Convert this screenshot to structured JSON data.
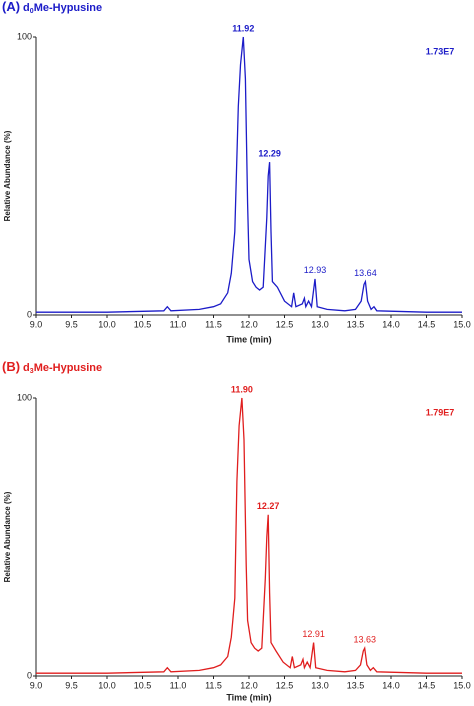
{
  "chart_data": [
    {
      "type": "line",
      "title": [
        "(A)",
        "d",
        "0",
        "Me-Hypusine"
      ],
      "annotation": "1.73E7",
      "xlabel": "Time (min)",
      "ylabel": "Relative Abundance (%)",
      "color": "#1c1cc8",
      "xlim": [
        9.0,
        15.0
      ],
      "ylim": [
        0,
        100
      ],
      "yticks": [
        0,
        100
      ],
      "xticks": [
        {
          "value": 9.0,
          "label": "9.0"
        },
        {
          "value": 9.5,
          "label": "9.5"
        },
        {
          "value": 10.0,
          "label": "10.0"
        },
        {
          "value": 10.5,
          "label": "10.5"
        },
        {
          "value": 11.0,
          "label": "11.0"
        },
        {
          "value": 11.5,
          "label": "11.5"
        },
        {
          "value": 12.0,
          "label": "12.0"
        },
        {
          "value": 12.5,
          "label": "12.5"
        },
        {
          "value": 13.0,
          "label": "13.0"
        },
        {
          "value": 13.5,
          "label": "13.5"
        },
        {
          "value": 14.0,
          "label": "14.0"
        },
        {
          "value": 14.5,
          "label": "14.5"
        },
        {
          "value": 15.0,
          "label": "15.0"
        }
      ],
      "peak_labels": [
        11.92,
        12.29,
        12.93,
        13.64
      ],
      "x": [
        9.0,
        10.0,
        10.8,
        10.85,
        10.9,
        11.3,
        11.5,
        11.6,
        11.7,
        11.75,
        11.8,
        11.85,
        11.88,
        11.92,
        11.95,
        11.98,
        12.0,
        12.05,
        12.1,
        12.15,
        12.2,
        12.25,
        12.27,
        12.29,
        12.31,
        12.33,
        12.4,
        12.5,
        12.6,
        12.63,
        12.66,
        12.75,
        12.78,
        12.8,
        12.84,
        12.88,
        12.93,
        12.96,
        13.1,
        13.35,
        13.5,
        13.58,
        13.62,
        13.64,
        13.67,
        13.72,
        13.76,
        13.8,
        14.5,
        15.0
      ],
      "values": [
        1,
        1,
        1.5,
        3,
        1.5,
        2,
        3,
        4,
        8,
        15,
        30,
        75,
        90,
        100,
        85,
        40,
        20,
        12,
        10,
        9,
        10,
        35,
        50,
        55,
        30,
        12,
        10,
        5,
        3,
        8,
        3,
        4,
        6,
        3,
        5,
        3,
        13,
        3,
        2,
        1.5,
        2,
        5,
        11,
        12,
        5,
        2,
        3,
        1.5,
        1,
        1
      ]
    },
    {
      "type": "line",
      "title": [
        "(B)",
        "d",
        "3",
        "Me-Hypusine"
      ],
      "annotation": "1.79E7",
      "xlabel": "Time (min)",
      "ylabel": "Relative Abundance (%)",
      "color": "#e01e1e",
      "xlim": [
        9.0,
        15.0
      ],
      "ylim": [
        0,
        100
      ],
      "yticks": [
        0,
        100
      ],
      "xticks": [
        {
          "value": 9.0,
          "label": "9.0"
        },
        {
          "value": 9.5,
          "label": "9.5"
        },
        {
          "value": 10.0,
          "label": "10.0"
        },
        {
          "value": 10.5,
          "label": "10.5"
        },
        {
          "value": 11.0,
          "label": "11.0"
        },
        {
          "value": 11.5,
          "label": "11.5"
        },
        {
          "value": 12.0,
          "label": "12.0"
        },
        {
          "value": 12.5,
          "label": "12.5"
        },
        {
          "value": 13.0,
          "label": "13.0"
        },
        {
          "value": 13.5,
          "label": "13.5"
        },
        {
          "value": 14.0,
          "label": "14.0"
        },
        {
          "value": 14.5,
          "label": "14.5"
        },
        {
          "value": 15.0,
          "label": "15.0"
        }
      ],
      "peak_labels": [
        {
          "value": 11.9,
          "label": "11.90"
        },
        12.27,
        12.91,
        13.63
      ],
      "x": [
        9.0,
        10.0,
        10.8,
        10.85,
        10.9,
        11.3,
        11.5,
        11.6,
        11.7,
        11.75,
        11.8,
        11.83,
        11.86,
        11.9,
        11.93,
        11.96,
        11.98,
        12.03,
        12.08,
        12.13,
        12.18,
        12.23,
        12.25,
        12.27,
        12.29,
        12.31,
        12.38,
        12.48,
        12.58,
        12.61,
        12.64,
        12.73,
        12.76,
        12.78,
        12.82,
        12.86,
        12.91,
        12.94,
        13.1,
        13.35,
        13.5,
        13.57,
        13.61,
        13.63,
        13.66,
        13.71,
        13.75,
        13.8,
        14.5,
        15.0
      ],
      "values": [
        1,
        1,
        1.5,
        3,
        1.5,
        2,
        3,
        4,
        7,
        14,
        28,
        70,
        90,
        100,
        85,
        40,
        20,
        12,
        10,
        9,
        10,
        35,
        50,
        58,
        30,
        12,
        9,
        5,
        3,
        7,
        3,
        4,
        6,
        3,
        5,
        3,
        12,
        3,
        2,
        1.5,
        2,
        4,
        9,
        10,
        4,
        2,
        3,
        1.5,
        1,
        1
      ]
    }
  ]
}
